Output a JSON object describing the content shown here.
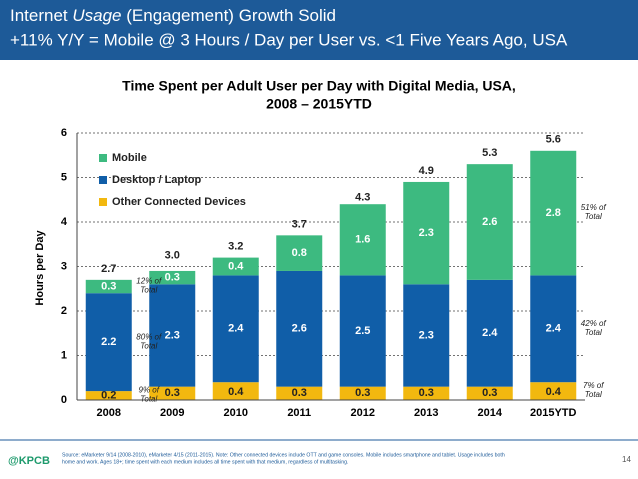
{
  "header": {
    "line1": [
      "Internet ",
      "Usage",
      " (Engagement) Growth Solid"
    ],
    "line2": "+11% Y/Y = Mobile @ 3 Hours / Day per User vs. <1  Five Years Ago, USA"
  },
  "chart_data": {
    "type": "stacked_bar",
    "title": [
      "Time Spent per Adult User per Day with Digital Media, USA,",
      "2008 – 2015YTD"
    ],
    "y_label": "Hours per Day",
    "categories": [
      "2008",
      "2009",
      "2010",
      "2011",
      "2012",
      "2013",
      "2014",
      "2015YTD"
    ],
    "series": [
      {
        "name": "Other Connected Devices",
        "color": "#f2b80f",
        "label_color": "#222",
        "values": [
          0.2,
          0.3,
          0.4,
          0.3,
          0.3,
          0.3,
          0.3,
          0.4
        ]
      },
      {
        "name": "Desktop / Laptop",
        "color": "#105ea8",
        "label_color": "#fff",
        "values": [
          2.2,
          2.3,
          2.4,
          2.6,
          2.5,
          2.3,
          2.4,
          2.4
        ]
      },
      {
        "name": "Mobile",
        "color": "#3dba80",
        "label_color": "#fff",
        "values": [
          0.3,
          0.3,
          0.4,
          0.8,
          1.6,
          2.3,
          2.6,
          2.8
        ]
      }
    ],
    "totals": {
      "values": [
        2.7,
        3.0,
        3.2,
        3.7,
        4.3,
        4.9,
        5.3,
        5.6
      ],
      "value_labels": [
        "2.7",
        "3.0",
        "3.2",
        "3.7",
        "4.3",
        "4.9",
        "5.3",
        "5.6"
      ]
    },
    "annotations": [
      {
        "category": 0,
        "series": 2,
        "lines": [
          "12% of",
          "Total"
        ]
      },
      {
        "category": 0,
        "series": 1,
        "lines": [
          "80% of",
          "Total"
        ]
      },
      {
        "category": 0,
        "series": 0,
        "lines": [
          "9% of",
          "Total"
        ]
      },
      {
        "category": 7,
        "series": 2,
        "lines": [
          "51% of",
          "Total"
        ]
      },
      {
        "category": 7,
        "series": 1,
        "lines": [
          "42% of",
          "Total"
        ]
      },
      {
        "category": 7,
        "series": 0,
        "lines": [
          "7% of",
          "Total"
        ]
      }
    ],
    "ylim": [
      0,
      6
    ],
    "yticks": [
      0,
      1,
      2,
      3,
      4,
      5,
      6
    ],
    "grid": true,
    "legend": "top-left"
  },
  "footer": {
    "logo": "@KPCB",
    "source": [
      "Source: eMarketer 9/14 (2008-2010), eMarketer 4/15 (2011-2015). Note: Other connected devices include OTT and game consoles. Mobile includes smartphone and tablet. Usage includes both",
      "home and work. Ages 18+; time spent with each medium includes all time spent with that medium, regardless of multitasking."
    ],
    "page": "14"
  }
}
